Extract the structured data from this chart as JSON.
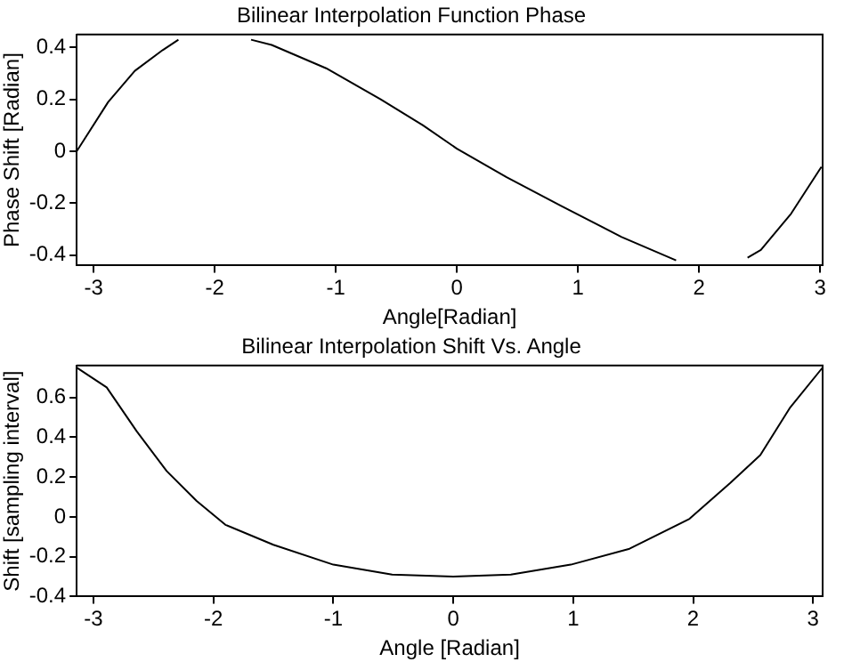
{
  "chart_data": [
    {
      "type": "line",
      "title": "Bilinear Interpolation Function Phase",
      "xlabel": "Angle[Radian]",
      "ylabel": "Phase Shift [Radian]",
      "xlim": [
        -3.14,
        3.02
      ],
      "xticks": [
        -3,
        -2,
        -1,
        0,
        1,
        2,
        3
      ],
      "ylim": [
        -0.44,
        0.45
      ],
      "yticks": [
        -0.4,
        -0.2,
        0,
        0.2,
        0.4
      ],
      "grid": false,
      "legend": false,
      "marker": "none",
      "line_style": "solid",
      "series": [
        {
          "color": "#000000",
          "x": [
            -3.14,
            -2.88,
            -2.66,
            -2.43,
            -2.3,
            -2.18,
            -1.88,
            -1.7,
            -1.53,
            -1.08,
            -0.63,
            -0.28,
            0,
            0.41,
            0.86,
            1.36,
            1.81,
            2.01,
            2.26,
            2.4,
            2.51,
            2.76,
            3.01
          ],
          "values": [
            0,
            0.19,
            0.31,
            0.39,
            0.43,
            null,
            null,
            0.43,
            0.41,
            0.32,
            0.2,
            0.1,
            0.01,
            -0.1,
            -0.21,
            -0.33,
            -0.42,
            null,
            null,
            -0.41,
            -0.38,
            -0.24,
            -0.06
          ]
        }
      ]
    },
    {
      "type": "line",
      "title": "Bilinear Interpolation Shift Vs. Angle",
      "xlabel": "Angle [Radian]",
      "ylabel": "Shift [sampling interval]",
      "xlim": [
        -3.14,
        3.08
      ],
      "xticks": [
        -3,
        -2,
        -1,
        0,
        1,
        2,
        3
      ],
      "ylim": [
        -0.4,
        0.76
      ],
      "yticks": [
        -0.4,
        -0.2,
        0,
        0.2,
        0.4,
        0.6
      ],
      "grid": false,
      "legend": false,
      "marker": "none",
      "line_style": "solid",
      "series": [
        {
          "color": "#000000",
          "x": [
            -3.14,
            -2.89,
            -2.64,
            -2.39,
            -2.14,
            -1.9,
            -1.5,
            -1,
            -0.51,
            0,
            0.48,
            0.98,
            1.47,
            1.97,
            2.31,
            2.56,
            2.81,
            3.08
          ],
          "values": [
            0.75,
            0.65,
            0.43,
            0.23,
            0.08,
            -0.04,
            -0.14,
            -0.24,
            -0.29,
            -0.3,
            -0.29,
            -0.24,
            -0.16,
            -0.01,
            0.17,
            0.31,
            0.55,
            0.75
          ]
        }
      ]
    }
  ]
}
